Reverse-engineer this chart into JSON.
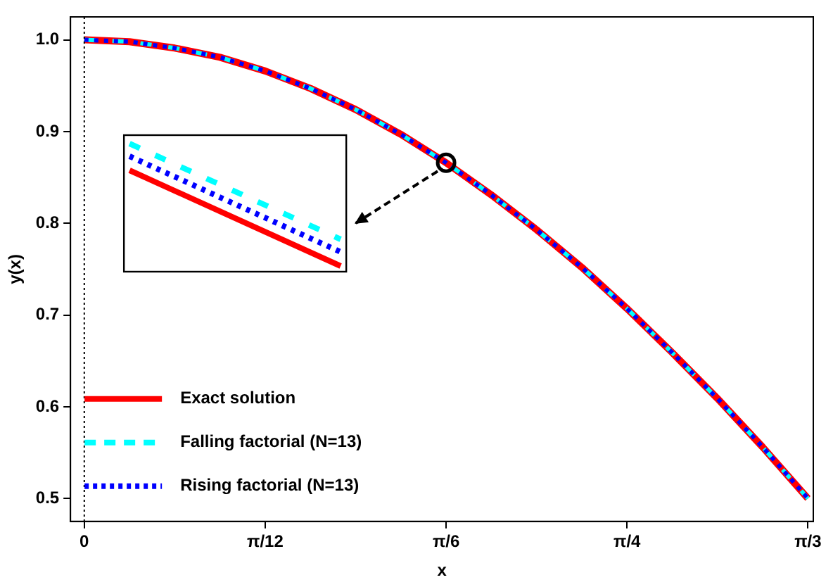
{
  "chart_data": {
    "type": "line",
    "xlabel": "x",
    "ylabel": "y(x)",
    "x": [
      0,
      0.0654,
      0.1309,
      0.1963,
      0.2618,
      0.3272,
      0.3927,
      0.4581,
      0.5236,
      0.589,
      0.6545,
      0.7199,
      0.7854,
      0.8508,
      0.9163,
      0.9817,
      1.0472
    ],
    "series": [
      {
        "name": "Exact solution",
        "color": "#ff0000",
        "line_style": "solid",
        "values": [
          1,
          0.998,
          0.991,
          0.981,
          0.966,
          0.947,
          0.924,
          0.897,
          0.866,
          0.831,
          0.793,
          0.752,
          0.707,
          0.659,
          0.609,
          0.556,
          0.5
        ]
      },
      {
        "name": "Falling factorial (N=13)",
        "color": "#00ffff",
        "line_style": "dashed",
        "values": [
          1,
          0.998,
          0.991,
          0.981,
          0.966,
          0.947,
          0.924,
          0.897,
          0.866,
          0.831,
          0.793,
          0.752,
          0.707,
          0.659,
          0.609,
          0.556,
          0.5
        ]
      },
      {
        "name": "Rising factorial (N=13)",
        "color": "#0000ff",
        "line_style": "dotted",
        "values": [
          1,
          0.998,
          0.991,
          0.981,
          0.966,
          0.947,
          0.924,
          0.897,
          0.866,
          0.831,
          0.793,
          0.752,
          0.707,
          0.659,
          0.609,
          0.556,
          0.5
        ]
      }
    ],
    "xlim": [
      -0.02,
      1.055
    ],
    "ylim": [
      0.475,
      1.025
    ],
    "xticks": [
      0,
      {
        "value": 0.2618,
        "label": "π/12"
      },
      {
        "value": 0.5236,
        "label": "π/6"
      },
      {
        "value": 0.7854,
        "label": "π/4"
      },
      {
        "value": 1.0472,
        "label": "π/3"
      }
    ],
    "yticks": [
      0.5,
      0.6,
      0.7,
      0.8,
      0.9,
      {
        "value": 1,
        "label": "1.0"
      }
    ],
    "ref_lines": [
      {
        "axis": "x",
        "value": 0,
        "color": "#000000",
        "line_style": "dotted"
      }
    ],
    "legend": "bottom left"
  }
}
